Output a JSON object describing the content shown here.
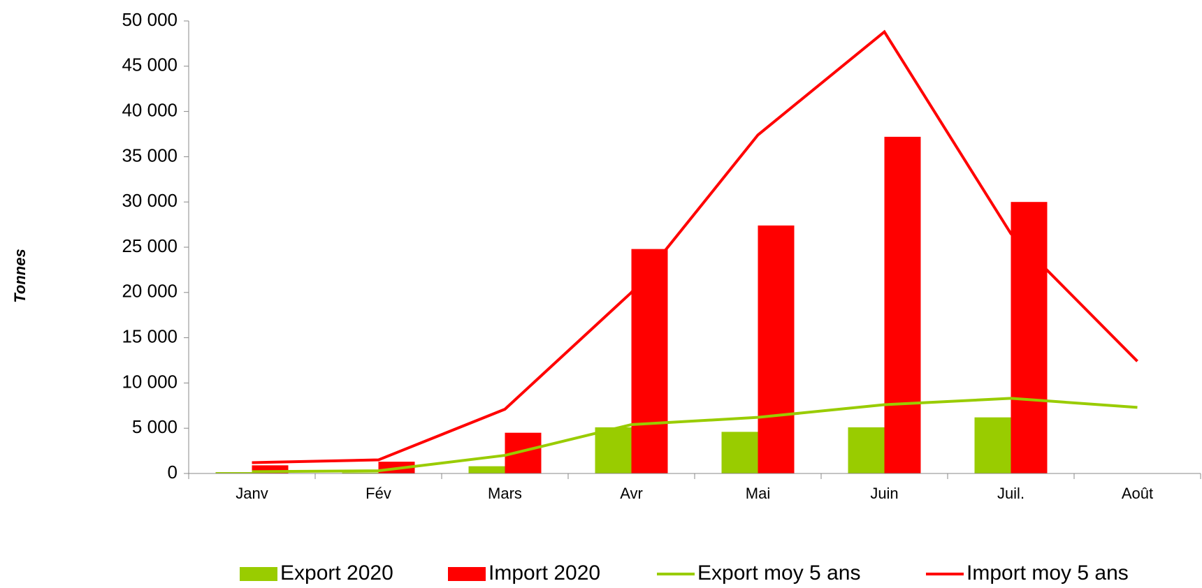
{
  "chart_data": {
    "type": "bar_line",
    "y_label": "Tonnes",
    "categories": [
      "Janv",
      "Fév",
      "Mars",
      "Avr",
      "Mai",
      "Juin",
      "Juil.",
      "Août"
    ],
    "series": [
      {
        "name": "Export 2020",
        "type": "bar",
        "color": "#99cc00",
        "values": [
          150,
          100,
          800,
          5100,
          4600,
          5100,
          6200,
          null
        ]
      },
      {
        "name": "Import 2020",
        "type": "bar",
        "color": "#ff0000",
        "values": [
          900,
          1300,
          4500,
          24800,
          27400,
          37200,
          30000,
          null
        ]
      },
      {
        "name": "Export moy 5 ans",
        "type": "line",
        "color": "#99cc00",
        "values": [
          200,
          300,
          2000,
          5400,
          6200,
          7600,
          8300,
          7300
        ]
      },
      {
        "name": "Import moy 5 ans",
        "type": "line",
        "color": "#ff0000",
        "values": [
          1200,
          1500,
          7100,
          20000,
          37400,
          48800,
          26500,
          12400
        ]
      }
    ],
    "ylim": [
      0,
      50000
    ],
    "yticks": [
      0,
      {
        "value": 5000,
        "label": "5 000"
      },
      {
        "value": 10000,
        "label": "10 000"
      },
      {
        "value": 15000,
        "label": "15 000"
      },
      {
        "value": 20000,
        "label": "20 000"
      },
      {
        "value": 25000,
        "label": "25 000"
      },
      {
        "value": 30000,
        "label": "30 000"
      },
      {
        "value": 35000,
        "label": "35 000"
      },
      {
        "value": 40000,
        "label": "40 000"
      },
      {
        "value": 45000,
        "label": "45 000"
      },
      {
        "value": 50000,
        "label": "50 000"
      }
    ],
    "grid": false,
    "legend": "bottom"
  }
}
